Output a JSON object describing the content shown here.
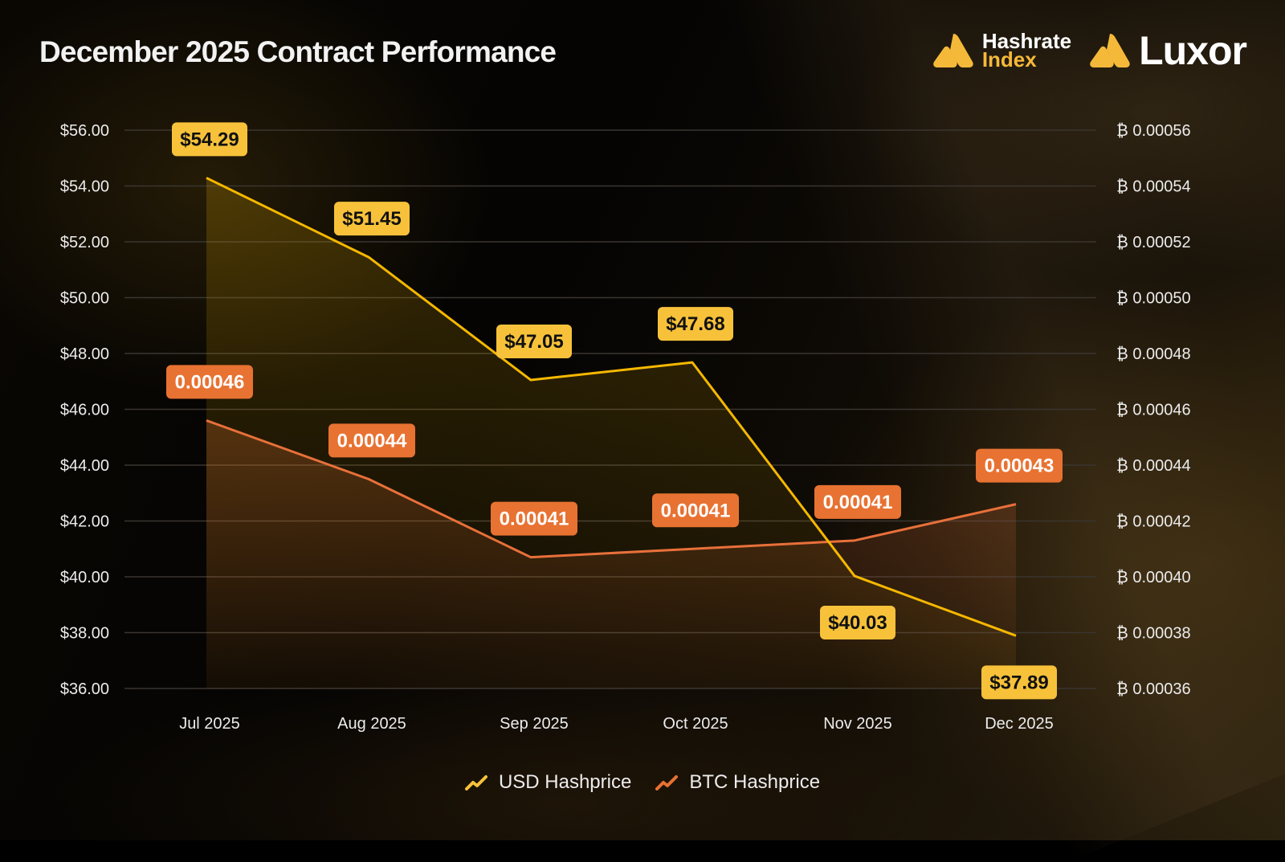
{
  "header": {
    "title": "December 2025 Contract Performance",
    "logo_hashrate_line1": "Hashrate",
    "logo_hashrate_line2": "Index",
    "logo_luxor": "Luxor"
  },
  "colors": {
    "usd": "#f7c23a",
    "usd_line": "#f5b800",
    "btc": "#e87232",
    "btc_line": "#e8703a",
    "grid": "#3a3530",
    "text": "#ececec"
  },
  "legend": [
    {
      "label": "USD Hashprice",
      "icon": "trend-up-icon"
    },
    {
      "label": "BTC Hashprice",
      "icon": "trend-up-icon"
    }
  ],
  "chart_data": {
    "type": "line",
    "title": "December 2025 Contract Performance",
    "xlabel": "",
    "ylabel": "USD Hashprice",
    "y2label": "BTC Hashprice",
    "categories": [
      "Jul 2025",
      "Aug 2025",
      "Sep 2025",
      "Oct 2025",
      "Nov 2025",
      "Dec 2025"
    ],
    "ylim": [
      36,
      56
    ],
    "y2lim": [
      0.00036,
      0.00056
    ],
    "yticks": [
      "$56.00",
      "$54.00",
      "$52.00",
      "$50.00",
      "$48.00",
      "$46.00",
      "$44.00",
      "$42.00",
      "$40.00",
      "$38.00",
      "$36.00"
    ],
    "ytick_values": [
      56,
      54,
      52,
      50,
      48,
      46,
      44,
      42,
      40,
      38,
      36
    ],
    "y2ticks": [
      "₿ 0.00056",
      "₿ 0.00054",
      "₿ 0.00052",
      "₿ 0.00050",
      "₿ 0.00048",
      "₿ 0.00046",
      "₿ 0.00044",
      "₿ 0.00042",
      "₿ 0.00040",
      "₿ 0.00038",
      "₿ 0.00036"
    ],
    "grid": true,
    "legend_position": "bottom-center",
    "series": [
      {
        "name": "USD Hashprice",
        "axis": "left",
        "values": [
          54.29,
          51.45,
          47.05,
          47.68,
          40.03,
          37.89
        ],
        "labels": [
          "$54.29",
          "$51.45",
          "$47.05",
          "$47.68",
          "$40.03",
          "$37.89"
        ],
        "label_placement": [
          "above",
          "above",
          "above",
          "above",
          "below",
          "below"
        ]
      },
      {
        "name": "BTC Hashprice",
        "axis": "right",
        "values": [
          0.000456,
          0.000435,
          0.000407,
          0.00041,
          0.000413,
          0.000426
        ],
        "labels": [
          "0.00046",
          "0.00044",
          "0.00041",
          "0.00041",
          "0.00041",
          "0.00043"
        ],
        "label_placement": [
          "above",
          "above",
          "above",
          "above",
          "above",
          "above"
        ]
      }
    ]
  }
}
